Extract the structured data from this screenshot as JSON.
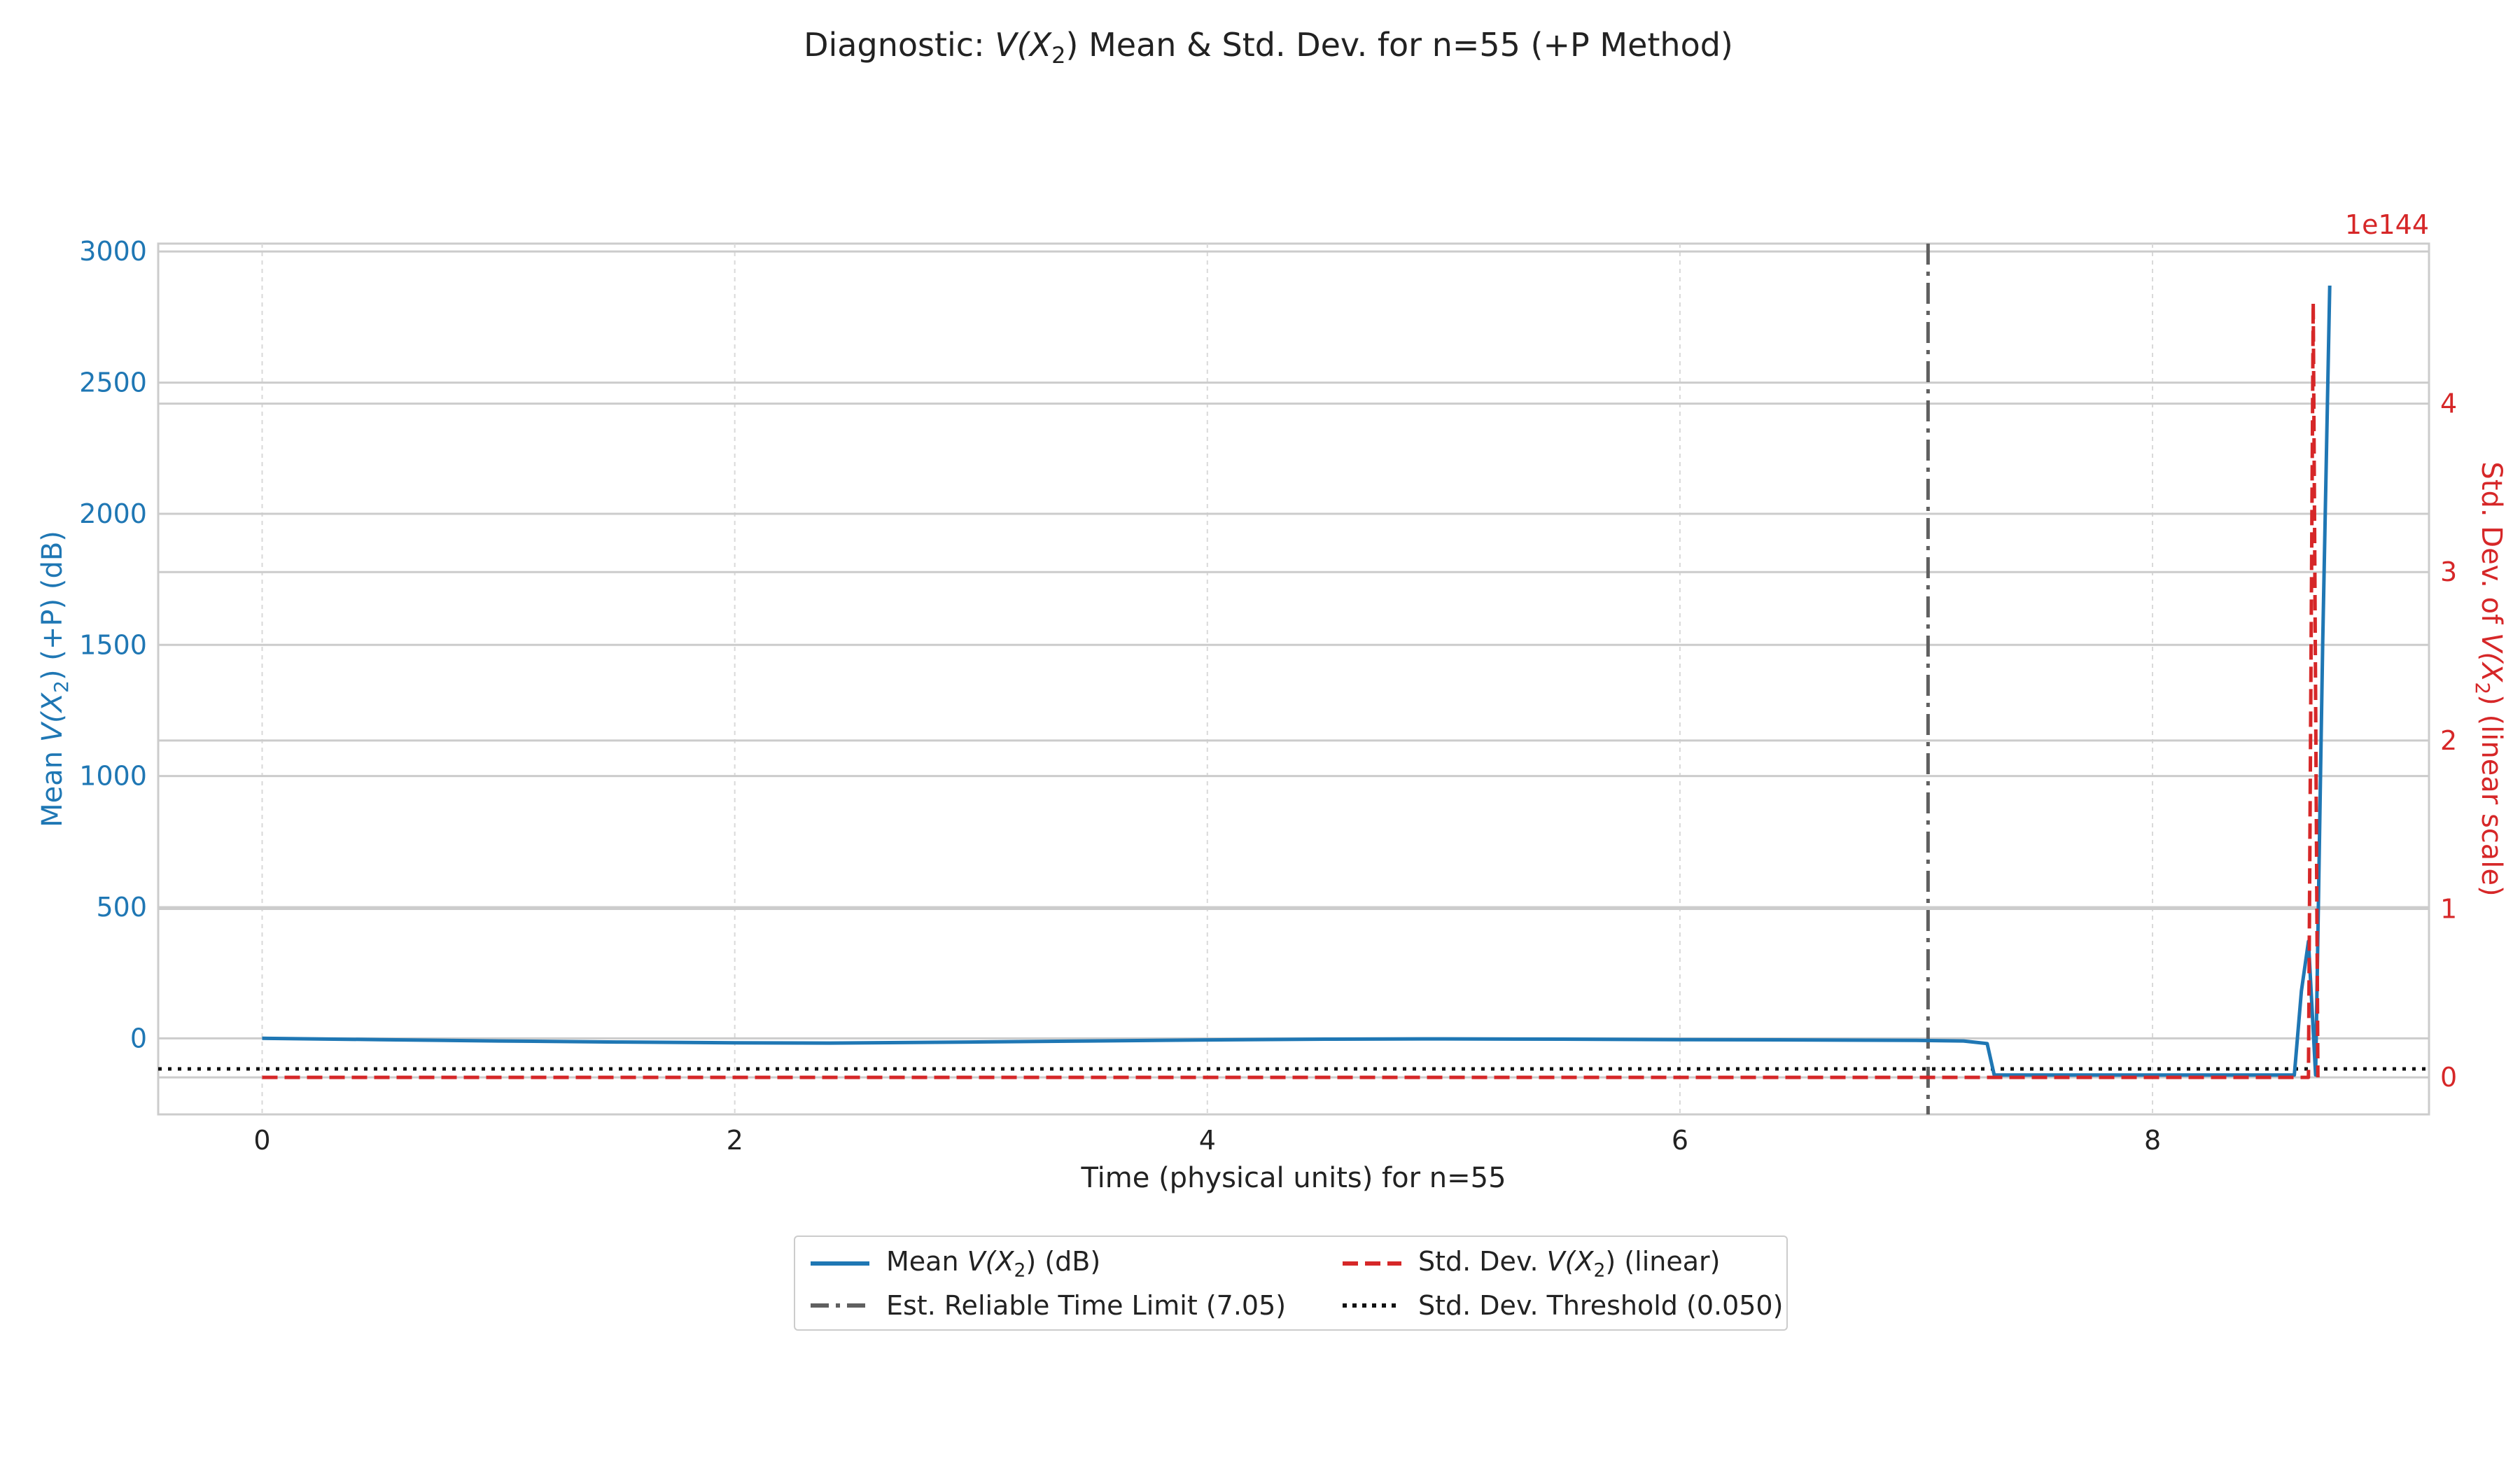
{
  "chart_data": {
    "type": "line",
    "title_parts": {
      "prefix": "Diagnostic: ",
      "math": "V(X",
      "sub": "2",
      "after_math": ")",
      "suffix": " Mean & Std. Dev. for n=55 (+P Method)"
    },
    "xlabel": "Time (physical units) for n=55",
    "ylabel_left": {
      "prefix": "Mean ",
      "math": "V(X",
      "sub": "2",
      "after_math": ")",
      "suffix": " (+P) (dB)"
    },
    "ylabel_right": {
      "prefix": "Std. Dev. of ",
      "math": "V(X",
      "sub": "2",
      "after_math": ")",
      "suffix": " (linear scale)"
    },
    "right_axis_offset_text": "1e144",
    "xlim": [
      -0.44,
      9.17
    ],
    "ylim_left": [
      -290,
      3030
    ],
    "ylim_right": [
      -0.22,
      4.95
    ],
    "x_ticks": [
      0,
      2,
      4,
      6,
      8
    ],
    "y_left_ticks": [
      0,
      500,
      1000,
      1500,
      2000,
      2500,
      3000
    ],
    "y_right_ticks": [
      0,
      1,
      2,
      3,
      4
    ],
    "grid": true,
    "colors": {
      "left_axis": "#1f77b4",
      "right_axis": "#d62728",
      "mean_line": "#1f77b4",
      "std_line": "#d62728",
      "limit_line": "#606060",
      "threshold_line": "#111111"
    },
    "series": [
      {
        "name": "Mean V(X2) (dB)",
        "axis": "left",
        "x": [
          0,
          0.5,
          1,
          1.5,
          2,
          2.4,
          3,
          3.5,
          4,
          4.5,
          5,
          5.5,
          6,
          6.5,
          7,
          7.2,
          7.3,
          7.33,
          7.5,
          8,
          8.6,
          8.63,
          8.66,
          8.69,
          8.72,
          8.75
        ],
        "y": [
          0,
          -5,
          -10,
          -14,
          -17,
          -18,
          -14,
          -10,
          -6,
          -3,
          -2,
          -3,
          -5,
          -6,
          -8,
          -10,
          -20,
          -140,
          -140,
          -140,
          -140,
          180,
          370,
          -140,
          1500,
          2870
        ]
      },
      {
        "name": "Std. Dev. V(X2) (linear)",
        "axis": "right",
        "x": [
          0,
          8.66,
          8.68,
          8.7
        ],
        "y": [
          0,
          0,
          4.6,
          0
        ]
      }
    ],
    "vlines": [
      {
        "name": "Est. Reliable Time Limit (7.05)",
        "x": 7.05
      }
    ],
    "hlines_right": [
      {
        "name": "Std. Dev. Threshold (0.050)",
        "y": 0.05
      }
    ],
    "legend_position": "lower-center",
    "legend": [
      {
        "key": "mean",
        "prefix": "Mean ",
        "math": "V(X",
        "sub": "2",
        "after_math": ")",
        "suffix": " (dB)",
        "style": "solid",
        "color": "#1f77b4"
      },
      {
        "key": "std",
        "prefix": "Std. Dev. ",
        "math": "V(X",
        "sub": "2",
        "after_math": ")",
        "suffix": " (linear)",
        "style": "dashed",
        "color": "#d62728"
      },
      {
        "key": "limit",
        "prefix": "Est. Reliable Time Limit (7.05)",
        "math": "",
        "sub": "",
        "after_math": "",
        "suffix": "",
        "style": "dashdot",
        "color": "#606060"
      },
      {
        "key": "threshold",
        "prefix": "Std. Dev. Threshold (0.050)",
        "math": "",
        "sub": "",
        "after_math": "",
        "suffix": "",
        "style": "dotted",
        "color": "#111111"
      }
    ]
  }
}
